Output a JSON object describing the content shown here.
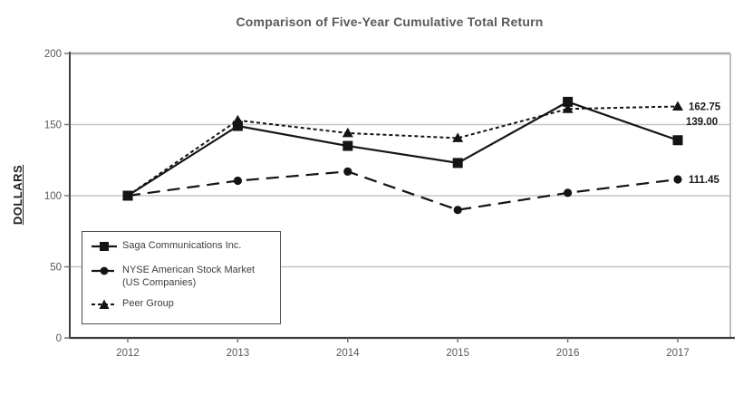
{
  "chart_data": {
    "type": "line",
    "title": "Comparison of Five-Year Cumulative Total Return",
    "ylabel": "DOLLARS",
    "xlabel": "",
    "x": [
      "2012",
      "2013",
      "2014",
      "2015",
      "2016",
      "2017"
    ],
    "ylim": [
      0,
      200
    ],
    "yticks": [
      0,
      50,
      100,
      150,
      200
    ],
    "grid": true,
    "legend_position": "lower-left",
    "series": [
      {
        "name": "Saga Communications Inc.",
        "values": [
          100,
          149,
          135,
          123,
          166,
          139
        ],
        "marker": "square",
        "dash": "solid",
        "color": "#141414",
        "end_label": "139.00"
      },
      {
        "name": "NYSE American Stock Market (US Companies)",
        "values": [
          100,
          110.5,
          117,
          90,
          102,
          111.45
        ],
        "marker": "circle",
        "dash": "long-dash",
        "color": "#141414",
        "end_label": "111.45"
      },
      {
        "name": "Peer Group",
        "values": [
          100,
          153,
          144,
          140.5,
          161,
          162.75
        ],
        "marker": "triangle",
        "dash": "short-dash",
        "color": "#141414",
        "end_label": "162.75"
      }
    ]
  },
  "colors": {
    "title_text": "#595959",
    "tick_text": "#595959",
    "axis": "#3f3f3f",
    "gridline": "#c6c6c6",
    "top_gridline": "#ababab",
    "series": "#141414",
    "legend_border": "#4d4d4d",
    "legend_text": "#3d3d3d"
  }
}
